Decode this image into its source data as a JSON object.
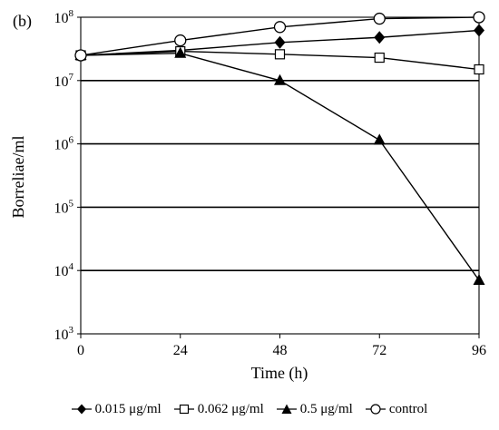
{
  "chart_data": {
    "type": "line",
    "panel_label": "(b)",
    "xlabel": "Time (h)",
    "ylabel": "Borreliae/ml",
    "x": [
      0,
      24,
      48,
      72,
      96
    ],
    "x_tick_labels": [
      "0",
      "24",
      "48",
      "72",
      "96"
    ],
    "xlim": [
      0,
      96
    ],
    "yscale": "log",
    "ylim": [
      1000,
      100000000
    ],
    "y_tick_labels": [
      {
        "base": "10",
        "exp": "3"
      },
      {
        "base": "10",
        "exp": "4"
      },
      {
        "base": "10",
        "exp": "5"
      },
      {
        "base": "10",
        "exp": "6"
      },
      {
        "base": "10",
        "exp": "7"
      },
      {
        "base": "10",
        "exp": "8"
      }
    ],
    "grid": "horizontal lines at each decade",
    "legend_position": "bottom",
    "series": [
      {
        "name": "0.015 μg/ml",
        "marker": "diamond-filled",
        "values": [
          25000000,
          30000000,
          40000000,
          48000000,
          62000000
        ]
      },
      {
        "name": "0.062 μg/ml",
        "marker": "square-open",
        "values": [
          25000000,
          29000000,
          26000000,
          23000000,
          15000000
        ]
      },
      {
        "name": "0.5 μg/ml",
        "marker": "triangle-filled",
        "values": [
          25000000,
          27000000,
          10000000,
          1150000,
          7000
        ]
      },
      {
        "name": "control",
        "marker": "circle-open",
        "values": [
          25000000,
          43000000,
          70000000,
          95000000,
          100000000
        ]
      }
    ]
  }
}
